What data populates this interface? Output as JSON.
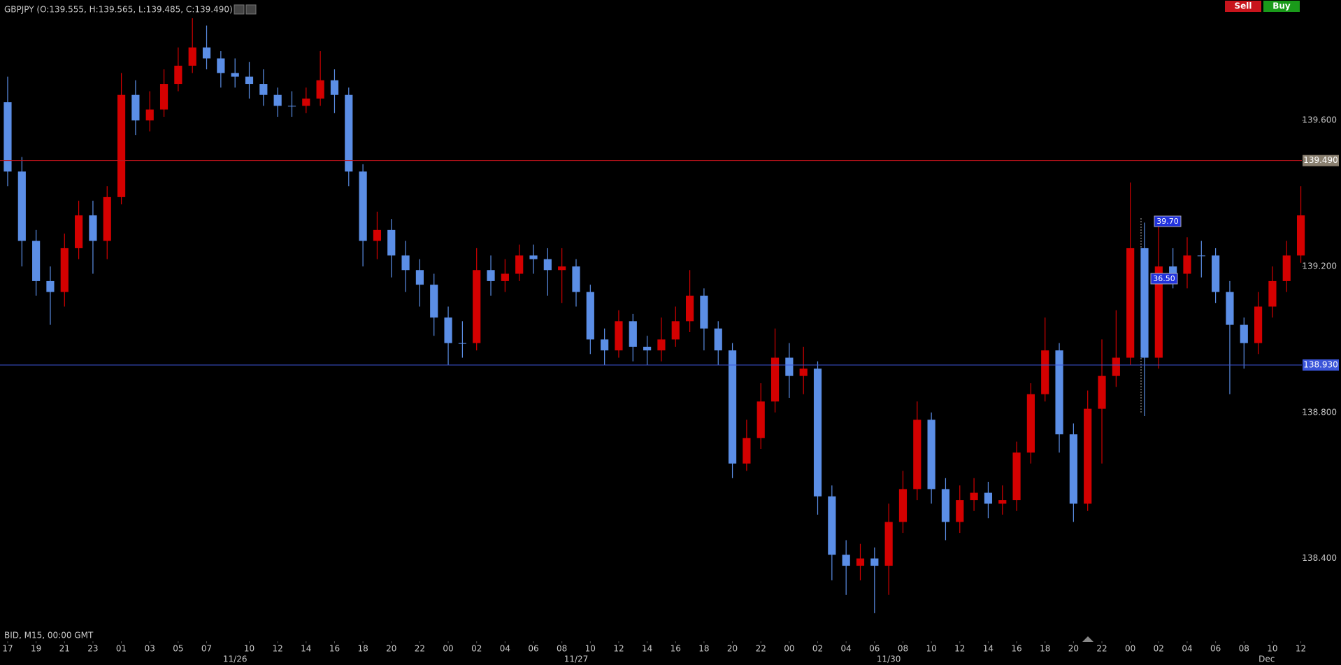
{
  "chart_data": {
    "type": "candlestick",
    "title": "GBPJPY (O:139.555, H:139.565, L:139.485, C:139.490)",
    "footer": "BID, M15, 00:00 GMT",
    "buttons": [
      "Sell",
      "Buy"
    ],
    "annotations": [
      "39.70",
      "36.50"
    ],
    "up_color": "#d40000",
    "down_color": "#5b8ee6",
    "xlim": [
      -0.54,
      91.07
    ],
    "ylim": [
      138.2,
      139.93
    ],
    "yticks": [
      {
        "value": 139.6,
        "label": "139.600"
      },
      {
        "value": 139.2,
        "label": "139.200"
      },
      {
        "value": 138.8,
        "label": "138.800"
      },
      {
        "value": 138.4,
        "label": "138.400"
      }
    ],
    "xticks": [
      {
        "value": 0,
        "label": "17"
      },
      {
        "value": 2,
        "label": "19"
      },
      {
        "value": 4,
        "label": "21"
      },
      {
        "value": 6,
        "label": "23"
      },
      {
        "value": 8,
        "label": "01"
      },
      {
        "value": 10,
        "label": "03"
      },
      {
        "value": 12,
        "label": "05"
      },
      {
        "value": 14,
        "label": "07"
      },
      {
        "value": 17,
        "label": "10"
      },
      {
        "value": 19,
        "label": "12"
      },
      {
        "value": 21,
        "label": "14"
      },
      {
        "value": 23,
        "label": "16"
      },
      {
        "value": 25,
        "label": "18"
      },
      {
        "value": 27,
        "label": "20"
      },
      {
        "value": 29,
        "label": "22"
      },
      {
        "value": 31,
        "label": "00"
      },
      {
        "value": 33,
        "label": "02"
      },
      {
        "value": 35,
        "label": "04"
      },
      {
        "value": 37,
        "label": "06"
      },
      {
        "value": 39,
        "label": "08"
      },
      {
        "value": 41,
        "label": "10"
      },
      {
        "value": 43,
        "label": "12"
      },
      {
        "value": 45,
        "label": "14"
      },
      {
        "value": 47,
        "label": "16"
      },
      {
        "value": 49,
        "label": "18"
      },
      {
        "value": 51,
        "label": "20"
      },
      {
        "value": 53,
        "label": "22"
      },
      {
        "value": 55,
        "label": "00"
      },
      {
        "value": 57,
        "label": "02"
      },
      {
        "value": 59,
        "label": "04"
      },
      {
        "value": 61,
        "label": "06"
      },
      {
        "value": 63,
        "label": "08"
      },
      {
        "value": 65,
        "label": "10"
      },
      {
        "value": 67,
        "label": "12"
      },
      {
        "value": 69,
        "label": "14"
      },
      {
        "value": 71,
        "label": "16"
      },
      {
        "value": 73,
        "label": "18"
      },
      {
        "value": 75,
        "label": "20"
      },
      {
        "value": 77,
        "label": "22"
      },
      {
        "value": 79,
        "label": "00"
      },
      {
        "value": 81,
        "label": "02"
      },
      {
        "value": 83,
        "label": "04"
      },
      {
        "value": 85,
        "label": "06"
      },
      {
        "value": 87,
        "label": "08"
      },
      {
        "value": 89,
        "label": "10"
      },
      {
        "value": 91,
        "label": "12"
      }
    ],
    "date_ticks": [
      {
        "value": 16,
        "label": "11/26"
      },
      {
        "value": 40,
        "label": "11/27"
      },
      {
        "value": 62,
        "label": "11/30"
      },
      {
        "value": 88.6,
        "label": "Dec"
      }
    ],
    "levels": [
      {
        "value": 139.49,
        "label": "139.490",
        "color": "#c0121b"
      },
      {
        "value": 138.93,
        "label": "138.930",
        "color": "#3b55d9"
      }
    ],
    "open": [
      139.65,
      139.46,
      139.27,
      139.16,
      139.13,
      139.25,
      139.34,
      139.27,
      139.39,
      139.67,
      139.6,
      139.63,
      139.7,
      139.75,
      139.8,
      139.77,
      139.73,
      139.72,
      139.7,
      139.67,
      139.64,
      139.64,
      139.66,
      139.71,
      139.67,
      139.46,
      139.27,
      139.3,
      139.23,
      139.19,
      139.15,
      139.06,
      138.99,
      138.99,
      139.19,
      139.16,
      139.18,
      139.23,
      139.22,
      139.19,
      139.2,
      139.13,
      139.0,
      138.97,
      139.05,
      138.98,
      138.97,
      139.0,
      139.05,
      139.12,
      139.03,
      138.97,
      138.66,
      138.73,
      138.83,
      138.95,
      138.9,
      138.92,
      138.57,
      138.41,
      138.38,
      138.4,
      138.38,
      138.5,
      138.59,
      138.78,
      138.59,
      138.5,
      138.56,
      138.58,
      138.55,
      138.56,
      138.69,
      138.85,
      138.97,
      138.74,
      138.55,
      138.81,
      138.9,
      138.95,
      139.25,
      138.95,
      139.2,
      139.18,
      139.23,
      139.23,
      139.13,
      139.04,
      138.99,
      139.09,
      139.16,
      139.23
    ],
    "high": [
      139.72,
      139.5,
      139.3,
      139.2,
      139.29,
      139.38,
      139.38,
      139.42,
      139.73,
      139.71,
      139.68,
      139.74,
      139.8,
      139.88,
      139.86,
      139.79,
      139.77,
      139.76,
      139.74,
      139.69,
      139.68,
      139.69,
      139.79,
      139.74,
      139.69,
      139.48,
      139.35,
      139.33,
      139.27,
      139.22,
      139.18,
      139.09,
      139.05,
      139.25,
      139.23,
      139.22,
      139.26,
      139.26,
      139.25,
      139.25,
      139.22,
      139.15,
      139.03,
      139.08,
      139.07,
      139.01,
      139.06,
      139.09,
      139.19,
      139.14,
      139.05,
      138.99,
      138.78,
      138.88,
      139.03,
      138.99,
      138.98,
      138.94,
      138.6,
      138.45,
      138.44,
      138.43,
      138.55,
      138.64,
      138.83,
      138.8,
      138.62,
      138.6,
      138.62,
      138.61,
      138.6,
      138.72,
      138.88,
      139.06,
      138.99,
      138.77,
      138.86,
      139.0,
      139.08,
      139.43,
      139.32,
      139.32,
      139.25,
      139.28,
      139.27,
      139.25,
      139.16,
      139.06,
      139.13,
      139.2,
      139.27,
      139.42
    ],
    "low": [
      139.42,
      139.2,
      139.12,
      139.04,
      139.09,
      139.22,
      139.18,
      139.22,
      139.37,
      139.56,
      139.57,
      139.61,
      139.68,
      139.73,
      139.74,
      139.69,
      139.69,
      139.66,
      139.64,
      139.61,
      139.61,
      139.62,
      139.64,
      139.62,
      139.42,
      139.2,
      139.22,
      139.17,
      139.13,
      139.09,
      139.01,
      138.93,
      138.95,
      138.97,
      139.12,
      139.13,
      139.16,
      139.18,
      139.12,
      139.1,
      139.09,
      138.96,
      138.93,
      138.95,
      138.94,
      138.93,
      138.94,
      138.98,
      139.02,
      138.97,
      138.93,
      138.62,
      138.64,
      138.7,
      138.8,
      138.84,
      138.85,
      138.52,
      138.34,
      138.3,
      138.34,
      138.25,
      138.3,
      138.47,
      138.56,
      138.55,
      138.45,
      138.47,
      138.53,
      138.51,
      138.52,
      138.53,
      138.66,
      138.83,
      138.69,
      138.5,
      138.53,
      138.66,
      138.87,
      138.93,
      138.79,
      138.92,
      139.14,
      139.14,
      139.17,
      139.1,
      138.85,
      138.92,
      138.96,
      139.06,
      139.13,
      139.21
    ],
    "close": [
      139.46,
      139.27,
      139.16,
      139.13,
      139.25,
      139.34,
      139.27,
      139.39,
      139.67,
      139.6,
      139.63,
      139.7,
      139.75,
      139.8,
      139.77,
      139.73,
      139.72,
      139.7,
      139.67,
      139.64,
      139.64,
      139.66,
      139.71,
      139.67,
      139.46,
      139.27,
      139.3,
      139.23,
      139.19,
      139.15,
      139.06,
      138.99,
      138.99,
      139.19,
      139.16,
      139.18,
      139.23,
      139.22,
      139.19,
      139.2,
      139.13,
      139.0,
      138.97,
      139.05,
      138.98,
      138.97,
      139.0,
      139.05,
      139.12,
      139.03,
      138.97,
      138.66,
      138.73,
      138.83,
      138.95,
      138.9,
      138.92,
      138.57,
      138.41,
      138.38,
      138.4,
      138.38,
      138.5,
      138.59,
      138.78,
      138.59,
      138.5,
      138.56,
      138.58,
      138.55,
      138.56,
      138.69,
      138.85,
      138.97,
      138.74,
      138.55,
      138.81,
      138.9,
      138.95,
      139.25,
      138.95,
      139.2,
      139.18,
      139.23,
      139.23,
      139.13,
      139.04,
      138.99,
      139.09,
      139.16,
      139.23,
      139.34
    ]
  }
}
